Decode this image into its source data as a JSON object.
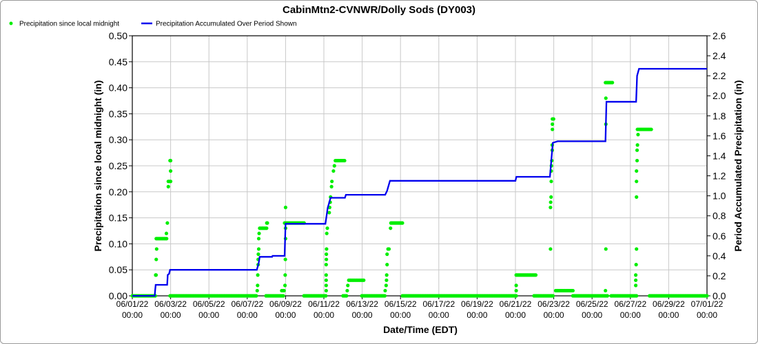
{
  "chart_data": {
    "type": "scatter+line",
    "title": "CabinMtn2-CVNWR/Dolly Sods (DY003)",
    "xlabel": "Date/Time (EDT)",
    "ylabel_left": "Precipitation since local midnight (in)",
    "ylabel_right": "Period Accumulated Precipitation (in)",
    "x_unit": "days since 06/01/22 00:00",
    "xlim": [
      0,
      30
    ],
    "ylim_left": [
      0,
      0.5
    ],
    "ylim_right": [
      0,
      2.6
    ],
    "grid": true,
    "legend_placement": "top-left",
    "x_ticks": [
      {
        "day": 0,
        "date": "06/01/22",
        "time": "00:00"
      },
      {
        "day": 2,
        "date": "06/03/22",
        "time": "00:00"
      },
      {
        "day": 4,
        "date": "06/05/22",
        "time": "00:00"
      },
      {
        "day": 6,
        "date": "06/07/22",
        "time": "00:00"
      },
      {
        "day": 8,
        "date": "06/09/22",
        "time": "00:00"
      },
      {
        "day": 10,
        "date": "06/11/22",
        "time": "00:00"
      },
      {
        "day": 12,
        "date": "06/13/22",
        "time": "00:00"
      },
      {
        "day": 14,
        "date": "06/15/22",
        "time": "00:00"
      },
      {
        "day": 16,
        "date": "06/17/22",
        "time": "00:00"
      },
      {
        "day": 18,
        "date": "06/19/22",
        "time": "00:00"
      },
      {
        "day": 20,
        "date": "06/21/22",
        "time": "00:00"
      },
      {
        "day": 22,
        "date": "06/23/22",
        "time": "00:00"
      },
      {
        "day": 24,
        "date": "06/25/22",
        "time": "00:00"
      },
      {
        "day": 26,
        "date": "06/27/22",
        "time": "00:00"
      },
      {
        "day": 28,
        "date": "06/29/22",
        "time": "00:00"
      },
      {
        "day": 30,
        "date": "07/01/22",
        "time": "00:00"
      }
    ],
    "left_ticks": [
      "0.00",
      "0.05",
      "0.10",
      "0.15",
      "0.20",
      "0.25",
      "0.30",
      "0.35",
      "0.40",
      "0.45",
      "0.50"
    ],
    "right_ticks": [
      "0.0",
      "0.2",
      "0.4",
      "0.6",
      "0.8",
      "1.0",
      "1.2",
      "1.4",
      "1.6",
      "1.8",
      "2.0",
      "2.2",
      "2.4",
      "2.6"
    ],
    "series": [
      {
        "name": "Precipitation since local midnight",
        "color": "#00ee00",
        "axis": "left",
        "runs": [
          [
            0,
            1.22,
            0
          ],
          [
            1.25,
            1.84,
            0.11
          ],
          [
            1.88,
            2.0,
            0.22
          ],
          [
            1.97,
            6.5,
            0
          ],
          [
            6.65,
            7.05,
            0.13
          ],
          [
            6.98,
            7.88,
            0
          ],
          [
            7.8,
            7.97,
            0.01
          ],
          [
            7.95,
            9.0,
            0.14
          ],
          [
            8.96,
            10.1,
            0
          ],
          [
            10.6,
            11.08,
            0.26
          ],
          [
            11.0,
            11.2,
            0
          ],
          [
            11.3,
            12.1,
            0.03
          ],
          [
            11.98,
            13.2,
            0
          ],
          [
            13.5,
            14.1,
            0.14
          ],
          [
            14.1,
            20.07,
            0
          ],
          [
            20.04,
            21.08,
            0.04
          ],
          [
            20.97,
            21.87,
            0
          ],
          [
            21.93,
            22.0,
            0.34
          ],
          [
            21.9,
            22.0,
            0
          ],
          [
            22.1,
            23.05,
            0.01
          ],
          [
            23.0,
            24.8,
            0
          ],
          [
            24.7,
            25.1,
            0.41
          ],
          [
            25.0,
            26.33,
            0
          ],
          [
            26.37,
            27.1,
            0.32
          ],
          [
            27.0,
            30,
            0
          ]
        ],
        "points": [
          [
            1.22,
            0.04
          ],
          [
            1.24,
            0.04
          ],
          [
            1.25,
            0.07
          ],
          [
            1.27,
            0.09
          ],
          [
            1.78,
            0.12
          ],
          [
            1.83,
            0.14
          ],
          [
            1.88,
            0.21
          ],
          [
            2.0,
            0.24
          ],
          [
            2.0,
            0.26
          ],
          [
            1.97,
            0.26
          ],
          [
            6.52,
            0.01
          ],
          [
            6.54,
            0.02
          ],
          [
            6.55,
            0.04
          ],
          [
            6.57,
            0.06
          ],
          [
            6.57,
            0.07
          ],
          [
            6.58,
            0.08
          ],
          [
            6.6,
            0.09
          ],
          [
            6.6,
            0.11
          ],
          [
            6.62,
            0.12
          ],
          [
            7.05,
            0.14
          ],
          [
            7.02,
            0.14
          ],
          [
            7.97,
            0.02
          ],
          [
            7.98,
            0.04
          ],
          [
            7.99,
            0.07
          ],
          [
            8.0,
            0.11
          ],
          [
            8.0,
            0.13
          ],
          [
            8.0,
            0.17
          ],
          [
            10.12,
            0.01
          ],
          [
            10.12,
            0.02
          ],
          [
            10.12,
            0.03
          ],
          [
            10.12,
            0.04
          ],
          [
            10.12,
            0.06
          ],
          [
            10.13,
            0.07
          ],
          [
            10.13,
            0.08
          ],
          [
            10.14,
            0.09
          ],
          [
            10.15,
            0.12
          ],
          [
            10.18,
            0.13
          ],
          [
            10.28,
            0.16
          ],
          [
            10.3,
            0.17
          ],
          [
            10.33,
            0.18
          ],
          [
            10.35,
            0.19
          ],
          [
            10.4,
            0.21
          ],
          [
            10.42,
            0.22
          ],
          [
            10.5,
            0.24
          ],
          [
            10.55,
            0.25
          ],
          [
            11.22,
            0.01
          ],
          [
            11.25,
            0.02
          ],
          [
            13.2,
            0.01
          ],
          [
            13.25,
            0.02
          ],
          [
            13.27,
            0.03
          ],
          [
            13.28,
            0.04
          ],
          [
            13.3,
            0.06
          ],
          [
            13.3,
            0.08
          ],
          [
            13.35,
            0.09
          ],
          [
            13.4,
            0.09
          ],
          [
            13.48,
            0.13
          ],
          [
            20.04,
            0.01
          ],
          [
            20.04,
            0.02
          ],
          [
            21.83,
            0.09
          ],
          [
            21.83,
            0.17
          ],
          [
            21.84,
            0.18
          ],
          [
            21.86,
            0.19
          ],
          [
            21.87,
            0.22
          ],
          [
            21.87,
            0.24
          ],
          [
            21.88,
            0.25
          ],
          [
            21.9,
            0.26
          ],
          [
            21.92,
            0.28
          ],
          [
            21.92,
            0.29
          ],
          [
            21.93,
            0.32
          ],
          [
            21.93,
            0.33
          ],
          [
            24.7,
            0.01
          ],
          [
            24.72,
            0.09
          ],
          [
            24.72,
            0.33
          ],
          [
            24.72,
            0.38
          ],
          [
            26.28,
            0.02
          ],
          [
            26.28,
            0.03
          ],
          [
            26.28,
            0.04
          ],
          [
            26.3,
            0.06
          ],
          [
            26.32,
            0.09
          ],
          [
            26.32,
            0.19
          ],
          [
            26.32,
            0.22
          ],
          [
            26.32,
            0.24
          ],
          [
            26.35,
            0.26
          ],
          [
            26.35,
            0.28
          ],
          [
            26.37,
            0.29
          ],
          [
            26.4,
            0.31
          ]
        ]
      },
      {
        "name": "Precipitation Accumulated Over Period Shown",
        "color": "#0000ee",
        "axis": "right",
        "vertices": [
          [
            0,
            0
          ],
          [
            1.17,
            0
          ],
          [
            1.19,
            0.05
          ],
          [
            1.22,
            0.11
          ],
          [
            1.82,
            0.11
          ],
          [
            1.85,
            0.21
          ],
          [
            1.92,
            0.22
          ],
          [
            1.97,
            0.26
          ],
          [
            6.5,
            0.26
          ],
          [
            6.6,
            0.33
          ],
          [
            6.65,
            0.39
          ],
          [
            7.3,
            0.39
          ],
          [
            7.32,
            0.4
          ],
          [
            7.95,
            0.4
          ],
          [
            8.0,
            0.72
          ],
          [
            10.08,
            0.72
          ],
          [
            10.2,
            0.88
          ],
          [
            10.35,
            0.98
          ],
          [
            11.1,
            0.98
          ],
          [
            11.15,
            1.01
          ],
          [
            13.2,
            1.01
          ],
          [
            13.3,
            1.05
          ],
          [
            13.45,
            1.15
          ],
          [
            20.0,
            1.15
          ],
          [
            20.05,
            1.19
          ],
          [
            21.8,
            1.19
          ],
          [
            21.95,
            1.53
          ],
          [
            22.2,
            1.545
          ],
          [
            24.7,
            1.545
          ],
          [
            24.75,
            1.94
          ],
          [
            26.3,
            1.94
          ],
          [
            26.35,
            2.2
          ],
          [
            26.45,
            2.27
          ],
          [
            30,
            2.27
          ]
        ]
      }
    ]
  }
}
